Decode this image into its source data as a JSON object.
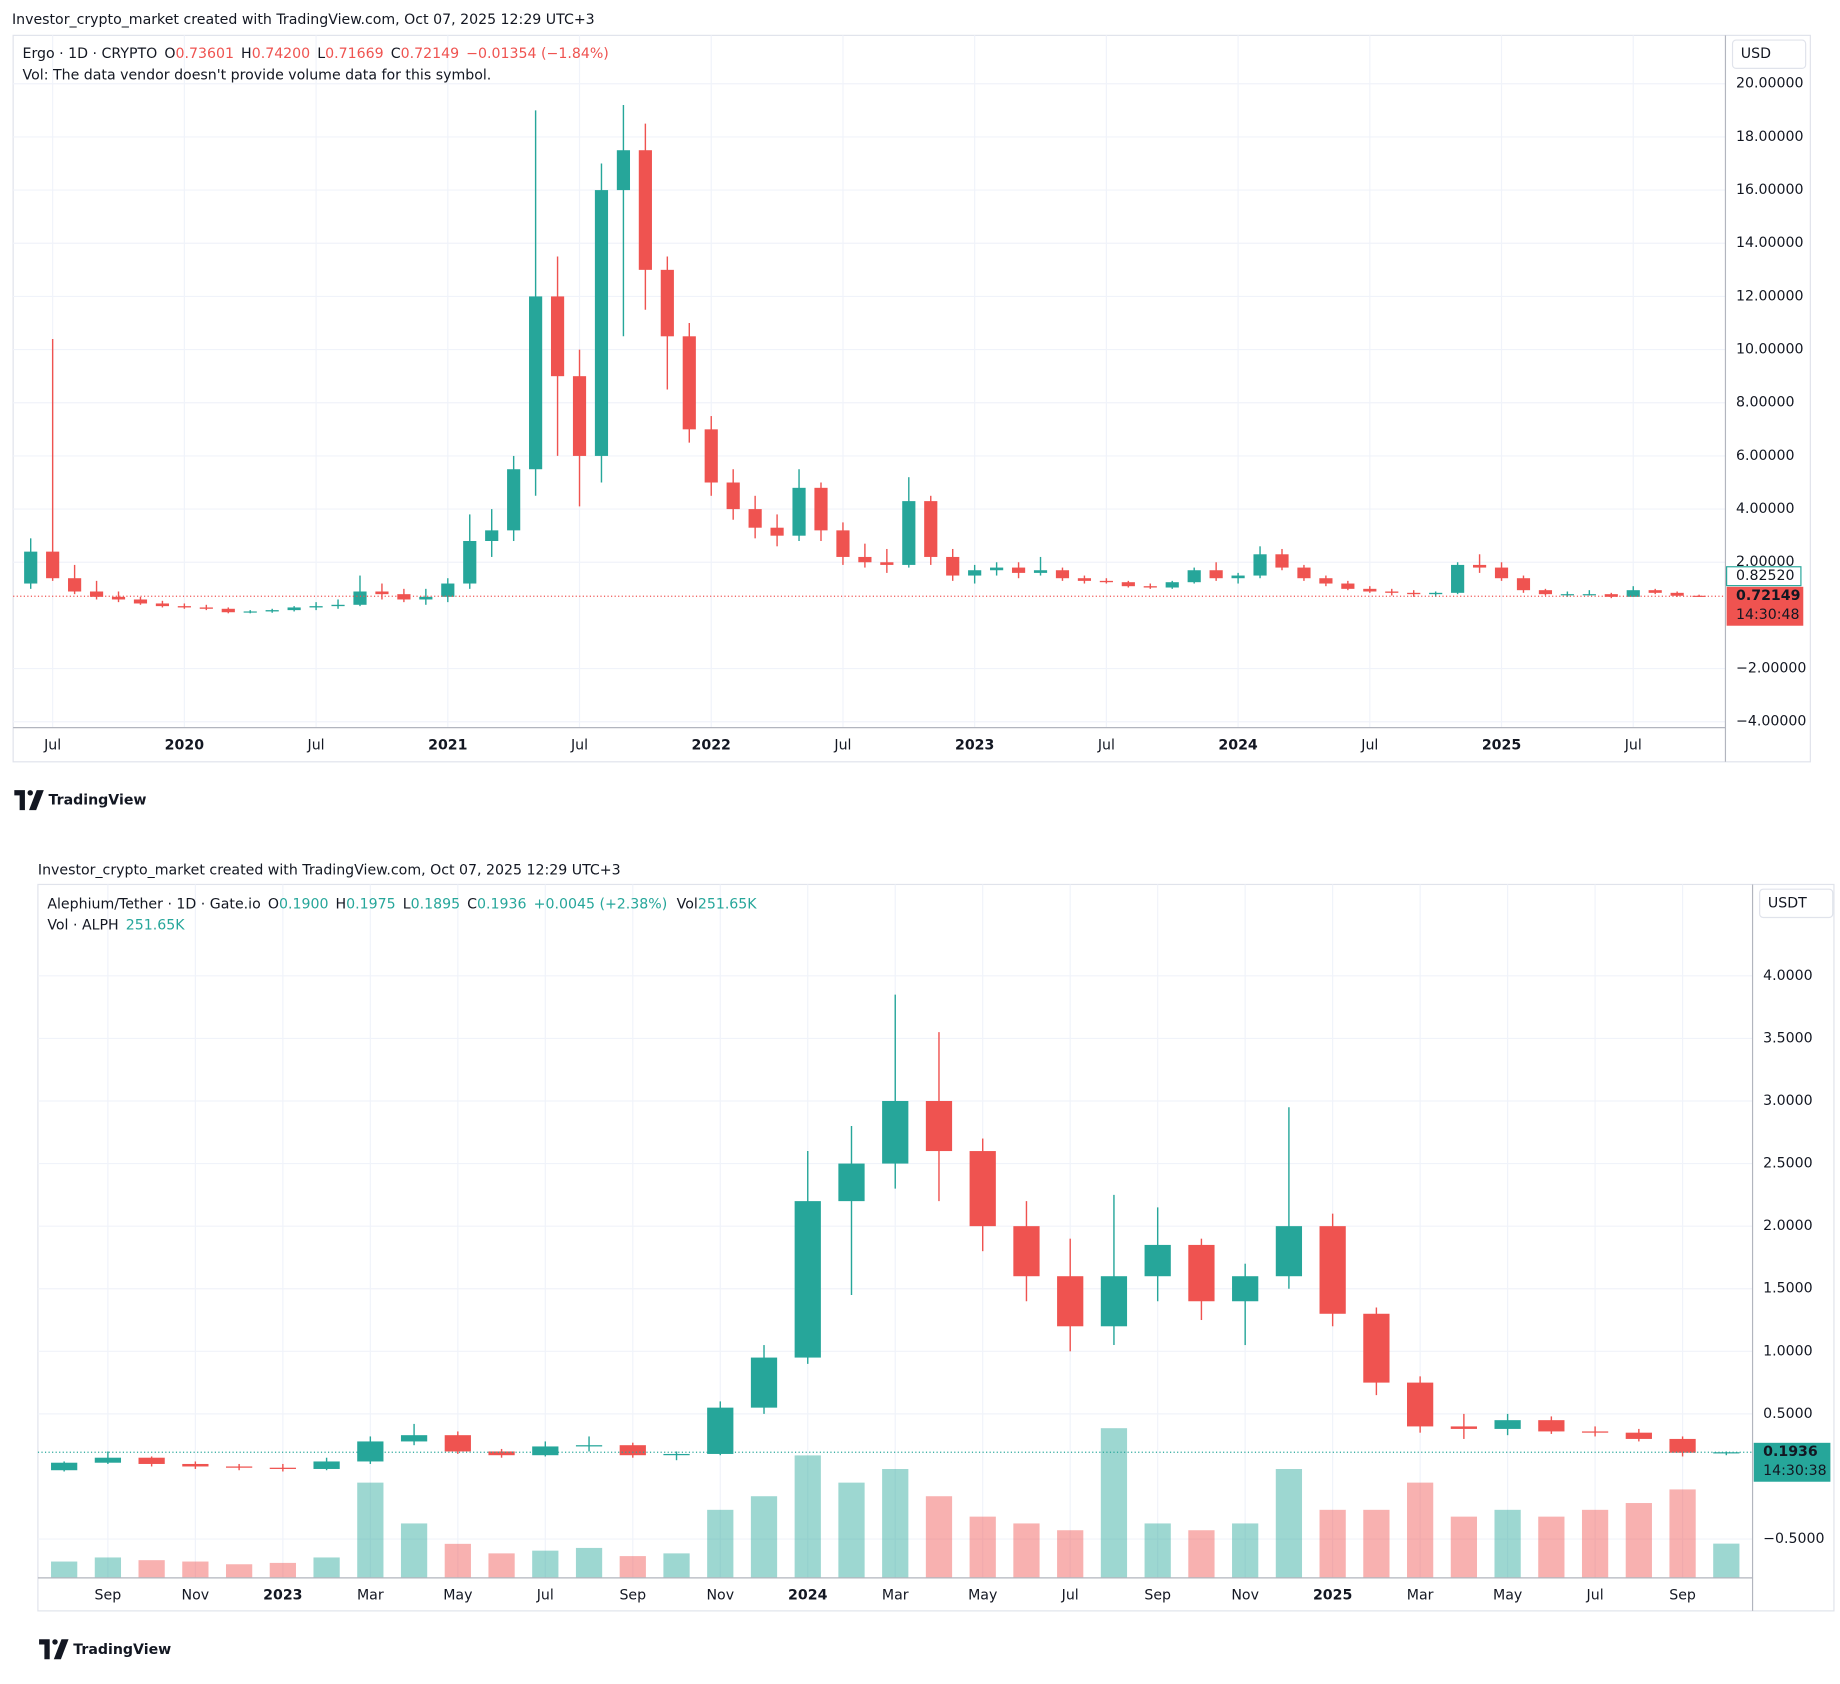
{
  "chart_data": [
    {
      "type": "candlestick",
      "header": "Investor_crypto_market created with TradingView.com, Oct 07, 2025 12:29 UTC+3",
      "symbol": "Ergo · 1D · CRYPTO",
      "quote": [
        {
          "label": "O",
          "value": "0.73601"
        },
        {
          "label": "H",
          "value": "0.74200"
        },
        {
          "label": "L",
          "value": "0.71669"
        },
        {
          "label": "C",
          "value": "0.72149"
        }
      ],
      "change": "−0.01354 (−1.84%)",
      "volume_line": {
        "label": "Vol: The data vendor doesn't provide volume data for this symbol."
      },
      "currency": "USD",
      "marker_price": {
        "value": 0.8252,
        "label": "0.82520"
      },
      "last_price": 0.72149,
      "countdown": "14:30:48",
      "logo": "TradingView",
      "up_color": "#26a69a",
      "down_color": "#ef5350",
      "grid": true,
      "xlim": [
        -1.8,
        76.2
      ],
      "ylim": [
        -4.22,
        21.82
      ],
      "xticks": [
        {
          "value": 0,
          "label": "Jul"
        },
        {
          "value": 6,
          "label": "2020"
        },
        {
          "value": 12,
          "label": "Jul"
        },
        {
          "value": 18,
          "label": "2021"
        },
        {
          "value": 24,
          "label": "Jul"
        },
        {
          "value": 30,
          "label": "2022"
        },
        {
          "value": 36,
          "label": "Jul"
        },
        {
          "value": 42,
          "label": "2023"
        },
        {
          "value": 48,
          "label": "Jul"
        },
        {
          "value": 54,
          "label": "2024"
        },
        {
          "value": 60,
          "label": "Jul"
        },
        {
          "value": 66,
          "label": "2025"
        },
        {
          "value": 72,
          "label": "Jul"
        }
      ],
      "yticks": [
        {
          "value": 20,
          "label": "20.00000"
        },
        {
          "value": 18,
          "label": "18.00000"
        },
        {
          "value": 16,
          "label": "16.00000"
        },
        {
          "value": 14,
          "label": "14.00000"
        },
        {
          "value": 12,
          "label": "12.00000"
        },
        {
          "value": 10,
          "label": "10.00000"
        },
        {
          "value": 8,
          "label": "8.00000"
        },
        {
          "value": 6,
          "label": "6.00000"
        },
        {
          "value": 4,
          "label": "4.00000"
        },
        {
          "value": 2,
          "label": "2.00000"
        },
        {
          "value": -2,
          "label": "−2.00000"
        },
        {
          "value": -4,
          "label": "−4.00000"
        }
      ],
      "x": [
        -1,
        0,
        1,
        2,
        3,
        4,
        5,
        6,
        7,
        8,
        9,
        10,
        11,
        12,
        13,
        14,
        15,
        16,
        17,
        18,
        19,
        20,
        21,
        22,
        23,
        24,
        25,
        26,
        27,
        28,
        29,
        30,
        31,
        32,
        33,
        34,
        35,
        36,
        37,
        38,
        39,
        40,
        41,
        42,
        43,
        44,
        45,
        46,
        47,
        48,
        49,
        50,
        51,
        52,
        53,
        54,
        55,
        56,
        57,
        58,
        59,
        60,
        61,
        62,
        63,
        64,
        65,
        66,
        67,
        68,
        69,
        70,
        71,
        72,
        73,
        74,
        75
      ],
      "open": [
        1.2,
        2.4,
        1.4,
        0.9,
        0.7,
        0.6,
        0.45,
        0.35,
        0.3,
        0.25,
        0.12,
        0.15,
        0.2,
        0.3,
        0.35,
        0.4,
        0.9,
        0.8,
        0.6,
        0.7,
        1.2,
        2.8,
        3.2,
        5.5,
        12.0,
        9.0,
        6.0,
        16.0,
        17.5,
        13.0,
        10.5,
        7.0,
        5.0,
        4.0,
        3.3,
        3.0,
        4.8,
        3.2,
        2.2,
        2.0,
        1.9,
        4.3,
        2.2,
        1.5,
        1.7,
        1.8,
        1.6,
        1.7,
        1.4,
        1.3,
        1.25,
        1.1,
        1.05,
        1.25,
        1.7,
        1.4,
        1.5,
        2.3,
        1.8,
        1.4,
        1.2,
        1.0,
        0.9,
        0.85,
        0.8,
        0.85,
        1.9,
        1.8,
        1.4,
        0.95,
        0.8,
        0.8,
        0.8,
        0.7,
        0.95,
        0.85,
        0.74
      ],
      "high": [
        2.9,
        10.4,
        1.9,
        1.3,
        0.9,
        0.7,
        0.55,
        0.45,
        0.4,
        0.3,
        0.2,
        0.25,
        0.35,
        0.5,
        0.6,
        1.5,
        1.2,
        1.0,
        1.0,
        1.4,
        3.8,
        4.0,
        6.0,
        19.0,
        13.5,
        10.0,
        17.0,
        19.2,
        18.5,
        13.5,
        11.0,
        7.5,
        5.5,
        4.5,
        3.8,
        5.5,
        5.0,
        3.5,
        2.7,
        2.5,
        5.2,
        4.5,
        2.5,
        1.9,
        2.0,
        2.0,
        2.2,
        1.8,
        1.5,
        1.4,
        1.3,
        1.2,
        1.3,
        1.8,
        2.0,
        1.6,
        2.6,
        2.5,
        1.9,
        1.5,
        1.3,
        1.1,
        1.0,
        0.95,
        0.9,
        2.0,
        2.3,
        2.0,
        1.5,
        1.0,
        0.9,
        0.95,
        0.85,
        1.1,
        1.0,
        0.9,
        0.78
      ],
      "low": [
        1.0,
        1.3,
        0.8,
        0.6,
        0.5,
        0.4,
        0.3,
        0.25,
        0.2,
        0.08,
        0.08,
        0.1,
        0.15,
        0.2,
        0.25,
        0.35,
        0.6,
        0.5,
        0.4,
        0.5,
        1.0,
        2.2,
        2.8,
        4.5,
        6.0,
        4.1,
        5.0,
        10.5,
        11.5,
        8.5,
        6.5,
        4.5,
        3.6,
        2.9,
        2.6,
        2.8,
        2.8,
        1.9,
        1.8,
        1.6,
        1.8,
        1.9,
        1.3,
        1.2,
        1.5,
        1.4,
        1.5,
        1.3,
        1.2,
        1.2,
        1.05,
        1.0,
        1.0,
        1.2,
        1.3,
        1.2,
        1.4,
        1.7,
        1.3,
        1.1,
        0.95,
        0.85,
        0.75,
        0.7,
        0.7,
        0.8,
        1.6,
        1.3,
        0.85,
        0.75,
        0.7,
        0.75,
        0.65,
        0.7,
        0.8,
        0.7,
        0.7
      ],
      "close": [
        2.4,
        1.4,
        0.9,
        0.7,
        0.6,
        0.45,
        0.35,
        0.3,
        0.25,
        0.12,
        0.15,
        0.2,
        0.3,
        0.35,
        0.4,
        0.9,
        0.8,
        0.6,
        0.7,
        1.2,
        2.8,
        3.2,
        5.5,
        12.0,
        9.0,
        6.0,
        16.0,
        17.5,
        13.0,
        10.5,
        7.0,
        5.0,
        4.0,
        3.3,
        3.0,
        4.8,
        3.2,
        2.2,
        2.0,
        1.9,
        4.3,
        2.2,
        1.5,
        1.7,
        1.8,
        1.6,
        1.7,
        1.4,
        1.3,
        1.25,
        1.1,
        1.05,
        1.25,
        1.7,
        1.4,
        1.5,
        2.3,
        1.8,
        1.4,
        1.2,
        1.0,
        0.9,
        0.85,
        0.8,
        0.85,
        1.9,
        1.8,
        1.4,
        0.95,
        0.8,
        0.8,
        0.8,
        0.7,
        0.95,
        0.85,
        0.74,
        0.72149
      ]
    },
    {
      "type": "candlestick",
      "header": "Investor_crypto_market created with TradingView.com, Oct 07, 2025 12:29 UTC+3",
      "symbol": "Alephium/Tether · 1D · Gate.io",
      "quote": [
        {
          "label": "O",
          "value": "0.1900"
        },
        {
          "label": "H",
          "value": "0.1975"
        },
        {
          "label": "L",
          "value": "0.1895"
        },
        {
          "label": "C",
          "value": "0.1936"
        }
      ],
      "change": "+0.0045 (+2.38%)",
      "quote_volume": {
        "label": "Vol",
        "value": "251.65K"
      },
      "volume_line": {
        "label": "Vol · ALPH",
        "value": "251.65K"
      },
      "currency": "USDT",
      "last_price": 0.1936,
      "countdown": "14:30:38",
      "logo": "TradingView",
      "up_color": "#26a69a",
      "down_color": "#ef5350",
      "grid": true,
      "xlim": [
        -1.6,
        37.6
      ],
      "ylim": [
        -0.81,
        4.73
      ],
      "volume_ylim": [
        0,
        1300000
      ],
      "xticks": [
        {
          "value": 0,
          "label": "Sep"
        },
        {
          "value": 2,
          "label": "Nov"
        },
        {
          "value": 4,
          "label": "2023"
        },
        {
          "value": 6,
          "label": "Mar"
        },
        {
          "value": 8,
          "label": "May"
        },
        {
          "value": 10,
          "label": "Jul"
        },
        {
          "value": 12,
          "label": "Sep"
        },
        {
          "value": 14,
          "label": "Nov"
        },
        {
          "value": 16,
          "label": "2024"
        },
        {
          "value": 18,
          "label": "Mar"
        },
        {
          "value": 20,
          "label": "May"
        },
        {
          "value": 22,
          "label": "Jul"
        },
        {
          "value": 24,
          "label": "Sep"
        },
        {
          "value": 26,
          "label": "Nov"
        },
        {
          "value": 28,
          "label": "2025"
        },
        {
          "value": 30,
          "label": "Mar"
        },
        {
          "value": 32,
          "label": "May"
        },
        {
          "value": 34,
          "label": "Jul"
        },
        {
          "value": 36,
          "label": "Sep"
        }
      ],
      "yticks": [
        {
          "value": 4,
          "label": "4.0000"
        },
        {
          "value": 3.5,
          "label": "3.5000"
        },
        {
          "value": 3,
          "label": "3.0000"
        },
        {
          "value": 2.5,
          "label": "2.5000"
        },
        {
          "value": 2,
          "label": "2.0000"
        },
        {
          "value": 1.5,
          "label": "1.5000"
        },
        {
          "value": 1,
          "label": "1.0000"
        },
        {
          "value": 0.5,
          "label": "0.5000"
        },
        {
          "value": -0.5,
          "label": "−0.5000"
        }
      ],
      "x": [
        -1,
        0,
        1,
        2,
        3,
        4,
        5,
        6,
        7,
        8,
        9,
        10,
        11,
        12,
        13,
        14,
        15,
        16,
        17,
        18,
        19,
        20,
        21,
        22,
        23,
        24,
        25,
        26,
        27,
        28,
        29,
        30,
        31,
        32,
        33,
        34,
        35,
        36,
        37
      ],
      "open": [
        0.05,
        0.11,
        0.15,
        0.1,
        0.08,
        0.07,
        0.06,
        0.12,
        0.28,
        0.33,
        0.2,
        0.17,
        0.24,
        0.25,
        0.17,
        0.18,
        0.55,
        0.95,
        2.2,
        2.5,
        3.0,
        2.6,
        2.0,
        1.6,
        1.2,
        1.6,
        1.85,
        1.4,
        1.6,
        2.0,
        1.3,
        0.75,
        0.4,
        0.38,
        0.45,
        0.36,
        0.35,
        0.3,
        0.19
      ],
      "high": [
        0.12,
        0.2,
        0.16,
        0.12,
        0.1,
        0.1,
        0.15,
        0.32,
        0.42,
        0.36,
        0.22,
        0.28,
        0.32,
        0.27,
        0.2,
        0.6,
        1.05,
        2.6,
        2.8,
        3.85,
        3.55,
        2.7,
        2.2,
        1.9,
        2.25,
        2.15,
        1.9,
        1.7,
        2.95,
        2.1,
        1.35,
        0.8,
        0.5,
        0.5,
        0.48,
        0.4,
        0.38,
        0.32,
        0.2
      ],
      "low": [
        0.04,
        0.1,
        0.08,
        0.06,
        0.05,
        0.04,
        0.05,
        0.1,
        0.25,
        0.18,
        0.15,
        0.16,
        0.2,
        0.15,
        0.13,
        0.17,
        0.5,
        0.9,
        1.45,
        2.3,
        2.2,
        1.8,
        1.4,
        1.0,
        1.05,
        1.4,
        1.25,
        1.05,
        1.5,
        1.2,
        0.65,
        0.35,
        0.3,
        0.33,
        0.34,
        0.32,
        0.28,
        0.16,
        0.17
      ],
      "close": [
        0.11,
        0.15,
        0.1,
        0.08,
        0.07,
        0.06,
        0.12,
        0.28,
        0.33,
        0.2,
        0.17,
        0.24,
        0.25,
        0.17,
        0.18,
        0.55,
        0.95,
        2.2,
        2.5,
        3.0,
        2.6,
        2.0,
        1.6,
        1.2,
        1.6,
        1.85,
        1.4,
        1.6,
        2.0,
        1.3,
        0.75,
        0.4,
        0.38,
        0.45,
        0.36,
        0.35,
        0.3,
        0.19,
        0.1936
      ],
      "volume": [
        120000,
        150000,
        130000,
        120000,
        100000,
        110000,
        150000,
        700000,
        400000,
        250000,
        180000,
        200000,
        220000,
        160000,
        180000,
        500000,
        600000,
        900000,
        700000,
        800000,
        600000,
        450000,
        400000,
        350000,
        1100000,
        400000,
        350000,
        400000,
        800000,
        500000,
        500000,
        700000,
        450000,
        500000,
        450000,
        500000,
        550000,
        650000,
        251650
      ]
    }
  ]
}
